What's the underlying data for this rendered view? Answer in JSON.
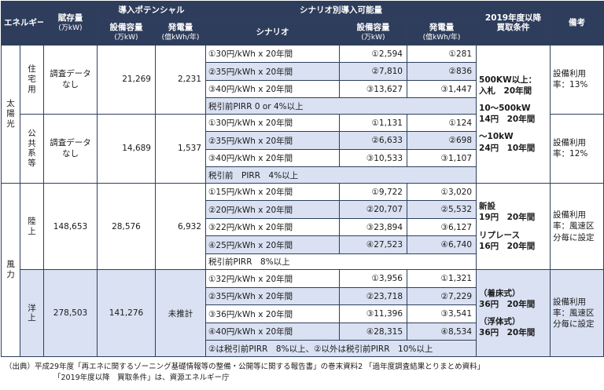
{
  "header": {
    "energy": "エネルギー",
    "reserve": "賦存量",
    "reserve_unit": "(万kW)",
    "potential": "導入ポテンシャル",
    "scenario_group": "シナリオ別導入可能量",
    "fy2019": "2019年度以降",
    "purchase_terms": "買取条件",
    "remarks": "備考",
    "capacity": "設備容量",
    "capacity_unit": "(万kW)",
    "generation": "発電量",
    "generation_unit": "(億kWh/年)",
    "scenario": "シナリオ"
  },
  "solar": {
    "category": [
      "太",
      "陽",
      "光"
    ],
    "purchase": {
      "line1": "500KW以上：",
      "line2": "入札　20年間",
      "line3": "10～500kW",
      "line4": "14円　20年間",
      "line5": "～10kW",
      "line6": "24円　10年間"
    },
    "groups": [
      {
        "name": [
          "住",
          "宅",
          "用"
        ],
        "reserve": "調査データなし",
        "capacity": "21,269",
        "generation": "2,231",
        "rows": [
          {
            "scenario": "①30円/kWh x 20年間",
            "cap": "①2,594",
            "gen": "①281"
          },
          {
            "scenario": "②35円/kWh x 20年間",
            "cap": "②7,810",
            "gen": "②836"
          },
          {
            "scenario": "③40円/kWh x 20年間",
            "cap": "③13,627",
            "gen": "③1,447"
          }
        ],
        "note": "税引前PIRR 0 or 4%以上",
        "remark": "設備利用率：13%"
      },
      {
        "name": [
          "公",
          "共",
          "系",
          "等"
        ],
        "reserve": "調査データなし",
        "capacity": "14,689",
        "generation": "1,537",
        "rows": [
          {
            "scenario": "①30円/kWh x 20年間",
            "cap": "①1,131",
            "gen": "①124"
          },
          {
            "scenario": "②35円/kWh x 20年間",
            "cap": "②6,633",
            "gen": "②698"
          },
          {
            "scenario": "③40円/kWh x 20年間",
            "cap": "③10,533",
            "gen": "③1,107"
          }
        ],
        "note": "税引前　PIRR　4%以上",
        "remark": "設備利用率：12%"
      }
    ]
  },
  "wind": {
    "category": [
      "風",
      "力"
    ],
    "groups": [
      {
        "name": [
          "陸",
          "上"
        ],
        "reserve": "148,653",
        "capacity": "28,576",
        "generation": "6,932",
        "rows": [
          {
            "scenario": "①15円/kWh x 20年間",
            "cap": "①9,722",
            "gen": "①3,020"
          },
          {
            "scenario": "②20円/kWh x 20年間",
            "cap": "②20,707",
            "gen": "②5,532"
          },
          {
            "scenario": "③22円/kWh x 20年間",
            "cap": "③23,894",
            "gen": "③6,127"
          },
          {
            "scenario": "④25円/kWh x 20年間",
            "cap": "④27,523",
            "gen": "④6,740"
          }
        ],
        "note": "税引前PIRR　8%以上",
        "purchase": {
          "line1": "新設",
          "line2": "19円　20年間",
          "line3": "リプレース",
          "line4": "16円　20年間"
        },
        "remark": "設備利用率：風速区分毎に設定"
      },
      {
        "name": [
          "洋",
          "上"
        ],
        "reserve": "278,503",
        "capacity": "141,276",
        "generation": "未推計",
        "rows": [
          {
            "scenario": "①32円/kWh x 20年間",
            "cap": "①3,956",
            "gen": "①1,321"
          },
          {
            "scenario": "②35円/kWh x 20年間",
            "cap": "②23,718",
            "gen": "②7,229"
          },
          {
            "scenario": "③36円/kWh x 20年間",
            "cap": "③11,396",
            "gen": "③3,541"
          },
          {
            "scenario": "④40円/kWh x 20年間",
            "cap": "④28,315",
            "gen": "④8,534"
          }
        ],
        "note": "②は税引前PIRR　8%以上、②以外は税引前PIRR　10%以上",
        "purchase": {
          "line1": "（着床式）",
          "line2": "36円　20年間",
          "line3": "（浮体式）",
          "line4": "36円　20年間"
        },
        "remark": "設備利用率：風速区分毎に設定"
      }
    ]
  },
  "footer": {
    "line1": "（出典）平成29年度「再エネに関するゾーニング基礎情報等の整備・公開等に関する報告書」の巻末資料2 「過年度調査結果とりまとめ資料」",
    "line2": "「2019年度以降　買取条件」は、資源エネルギー庁"
  }
}
